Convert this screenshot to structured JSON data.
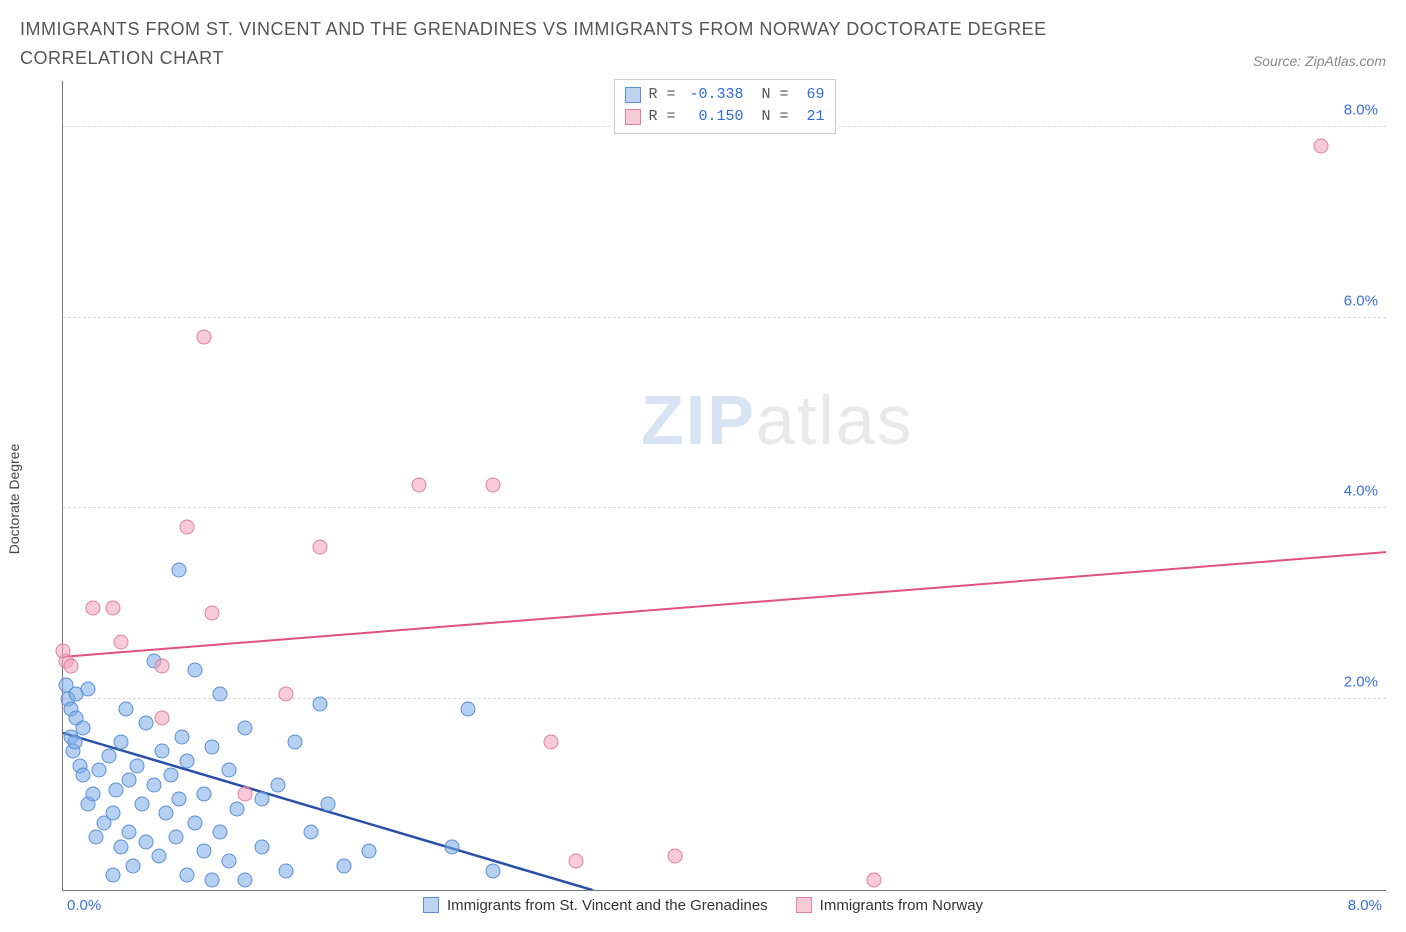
{
  "title": "IMMIGRANTS FROM ST. VINCENT AND THE GRENADINES VS IMMIGRANTS FROM NORWAY DOCTORATE DEGREE CORRELATION CHART",
  "source_label": "Source: ZipAtlas.com",
  "watermark": {
    "part1": "ZIP",
    "part2": "atlas"
  },
  "y_axis_label": "Doctorate Degree",
  "axes": {
    "x_min": 0.0,
    "x_max": 8.0,
    "y_min": 0.0,
    "y_max": 8.5,
    "x_tick_left": "0.0%",
    "x_tick_right": "8.0%",
    "y_ticks": [
      {
        "value": 2.0,
        "label": "2.0%"
      },
      {
        "value": 4.0,
        "label": "4.0%"
      },
      {
        "value": 6.0,
        "label": "6.0%"
      },
      {
        "value": 8.0,
        "label": "8.0%"
      }
    ],
    "x_tick_color": "#3a6fd8",
    "y_tick_color": "#3a6fd8",
    "grid_color": "#dddddd",
    "axis_color": "#777777"
  },
  "legend_top": {
    "rows": [
      {
        "swatch_fill": "#bcd4f0",
        "swatch_border": "#5b8fd6",
        "r_label": "R =",
        "r_value": "-0.338",
        "n_label": "N =",
        "n_value": "69",
        "value_color": "#2d6cdf"
      },
      {
        "swatch_fill": "#f6cbd6",
        "swatch_border": "#e37fa0",
        "r_label": "R =",
        "r_value": " 0.150",
        "n_label": "N =",
        "n_value": "21",
        "value_color": "#2d6cdf"
      }
    ],
    "label_color": "#555555"
  },
  "legend_bottom": {
    "items": [
      {
        "swatch_fill": "#bcd4f0",
        "swatch_border": "#5b8fd6",
        "label": "Immigrants from St. Vincent and the Grenadines"
      },
      {
        "swatch_fill": "#f6cbd6",
        "swatch_border": "#e37fa0",
        "label": "Immigrants from Norway"
      }
    ]
  },
  "series": [
    {
      "name": "Immigrants from St. Vincent and the Grenadines",
      "type": "scatter",
      "color_fill": "rgba(120,170,230,0.55)",
      "color_border": "#5b8fd6",
      "marker_radius_px": 7.5,
      "trend_line": {
        "x1": 0.0,
        "y1": 1.65,
        "x2": 3.2,
        "y2": 0.0,
        "color": "#2850a8",
        "width": 2.5,
        "dash_extend": true
      },
      "points": [
        [
          0.02,
          2.15
        ],
        [
          0.03,
          2.0
        ],
        [
          0.05,
          1.9
        ],
        [
          0.05,
          1.6
        ],
        [
          0.06,
          1.45
        ],
        [
          0.07,
          1.55
        ],
        [
          0.08,
          1.8
        ],
        [
          0.08,
          2.05
        ],
        [
          0.1,
          1.3
        ],
        [
          0.12,
          1.7
        ],
        [
          0.12,
          1.2
        ],
        [
          0.15,
          0.9
        ],
        [
          0.15,
          2.1
        ],
        [
          0.18,
          1.0
        ],
        [
          0.2,
          0.55
        ],
        [
          0.22,
          1.25
        ],
        [
          0.25,
          0.7
        ],
        [
          0.28,
          1.4
        ],
        [
          0.3,
          0.8
        ],
        [
          0.3,
          0.15
        ],
        [
          0.32,
          1.05
        ],
        [
          0.35,
          0.45
        ],
        [
          0.35,
          1.55
        ],
        [
          0.38,
          1.9
        ],
        [
          0.4,
          0.6
        ],
        [
          0.4,
          1.15
        ],
        [
          0.42,
          0.25
        ],
        [
          0.45,
          1.3
        ],
        [
          0.48,
          0.9
        ],
        [
          0.5,
          1.75
        ],
        [
          0.5,
          0.5
        ],
        [
          0.55,
          1.1
        ],
        [
          0.55,
          2.4
        ],
        [
          0.58,
          0.35
        ],
        [
          0.6,
          1.45
        ],
        [
          0.62,
          0.8
        ],
        [
          0.65,
          1.2
        ],
        [
          0.68,
          0.55
        ],
        [
          0.7,
          0.95
        ],
        [
          0.72,
          1.6
        ],
        [
          0.75,
          0.15
        ],
        [
          0.75,
          1.35
        ],
        [
          0.8,
          0.7
        ],
        [
          0.8,
          2.3
        ],
        [
          0.85,
          1.0
        ],
        [
          0.85,
          0.4
        ],
        [
          0.9,
          0.1
        ],
        [
          0.9,
          1.5
        ],
        [
          0.95,
          0.6
        ],
        [
          0.95,
          2.05
        ],
        [
          1.0,
          1.25
        ],
        [
          1.0,
          0.3
        ],
        [
          1.05,
          0.85
        ],
        [
          1.1,
          0.1
        ],
        [
          1.1,
          1.7
        ],
        [
          1.2,
          0.95
        ],
        [
          1.2,
          0.45
        ],
        [
          1.3,
          1.1
        ],
        [
          1.35,
          0.2
        ],
        [
          1.4,
          1.55
        ],
        [
          1.5,
          0.6
        ],
        [
          1.55,
          1.95
        ],
        [
          1.6,
          0.9
        ],
        [
          1.7,
          0.25
        ],
        [
          0.7,
          3.35
        ],
        [
          1.85,
          0.4
        ],
        [
          2.35,
          0.45
        ],
        [
          2.6,
          0.2
        ],
        [
          2.45,
          1.9
        ]
      ]
    },
    {
      "name": "Immigrants from Norway",
      "type": "scatter",
      "color_fill": "rgba(240,160,185,0.55)",
      "color_border": "#e37fa0",
      "marker_radius_px": 7.5,
      "trend_line": {
        "x1": 0.0,
        "y1": 2.45,
        "x2": 8.0,
        "y2": 3.55,
        "color": "#e05080",
        "width": 2,
        "dash_extend": false
      },
      "points": [
        [
          0.02,
          2.4
        ],
        [
          0.05,
          2.35
        ],
        [
          0.18,
          2.95
        ],
        [
          0.3,
          2.95
        ],
        [
          0.35,
          2.6
        ],
        [
          0.6,
          1.8
        ],
        [
          0.6,
          2.35
        ],
        [
          0.75,
          3.8
        ],
        [
          0.85,
          5.8
        ],
        [
          0.9,
          2.9
        ],
        [
          1.1,
          1.0
        ],
        [
          1.35,
          2.05
        ],
        [
          1.55,
          3.6
        ],
        [
          2.15,
          4.25
        ],
        [
          2.6,
          4.25
        ],
        [
          2.95,
          1.55
        ],
        [
          3.1,
          0.3
        ],
        [
          3.7,
          0.35
        ],
        [
          4.9,
          0.1
        ],
        [
          7.6,
          7.8
        ],
        [
          0.0,
          2.5
        ]
      ]
    }
  ]
}
